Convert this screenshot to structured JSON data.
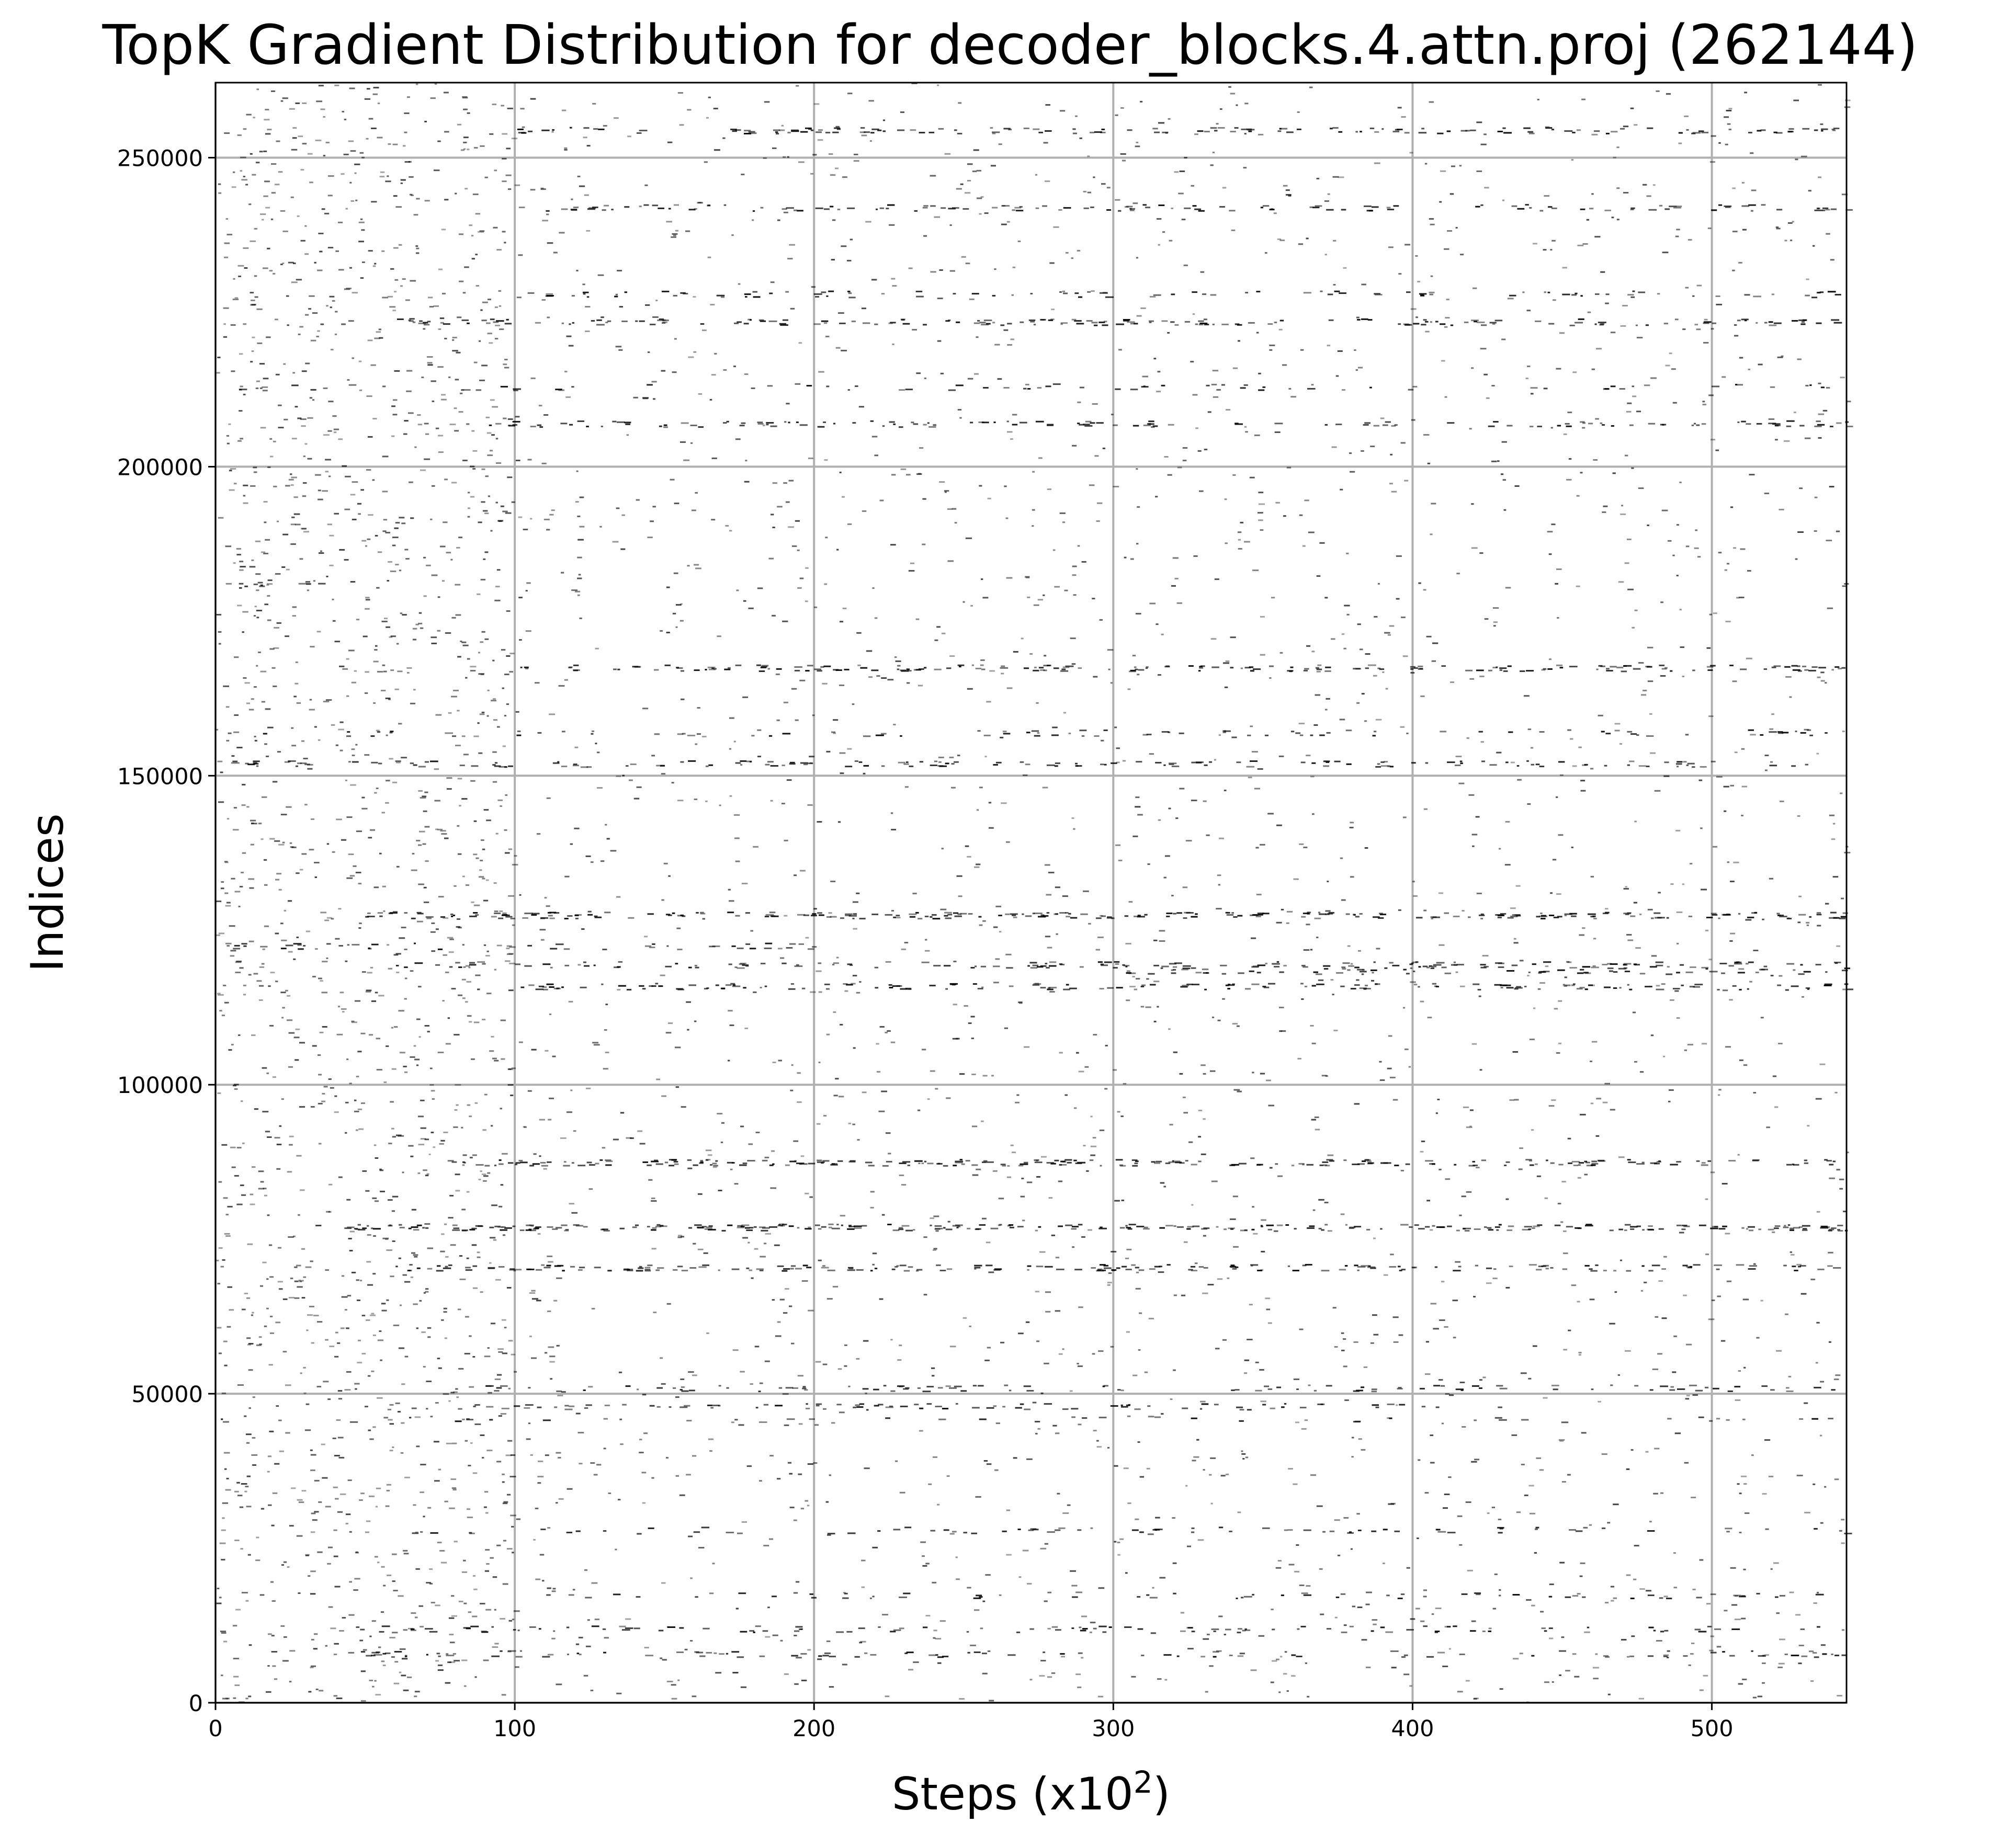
{
  "chart_data": {
    "type": "scatter",
    "title": "TopK Gradient Distribution for decoder_blocks.4.attn.proj (262144)",
    "xlabel": "Steps (x10",
    "xlabel_sup": "2",
    "xlabel_end": ")",
    "ylabel": "Indices",
    "xlim": [
      0,
      545
    ],
    "ylim": [
      0,
      262144
    ],
    "xticks": [
      0,
      100,
      200,
      300,
      400,
      500
    ],
    "xtick_labels": [
      "0",
      "100",
      "200",
      "300",
      "400",
      "500"
    ],
    "yticks": [
      0,
      50000,
      100000,
      150000,
      200000,
      250000
    ],
    "ytick_labels": [
      "0",
      "50000",
      "100000",
      "150000",
      "200000",
      "250000"
    ],
    "grid": true,
    "marker_color": "#000000",
    "dense_bands": [
      {
        "index": 254500,
        "x_start": 100,
        "x_end": 545,
        "density": 0.55
      },
      {
        "index": 242000,
        "x_start": 100,
        "x_end": 545,
        "density": 0.45
      },
      {
        "index": 228000,
        "x_start": 100,
        "x_end": 545,
        "density": 0.35
      },
      {
        "index": 223500,
        "x_start": 60,
        "x_end": 545,
        "density": 0.6
      },
      {
        "index": 213000,
        "x_start": 0,
        "x_end": 545,
        "density": 0.2
      },
      {
        "index": 207000,
        "x_start": 80,
        "x_end": 545,
        "density": 0.45
      },
      {
        "index": 181000,
        "x_start": 5,
        "x_end": 35,
        "density": 0.6
      },
      {
        "index": 167500,
        "x_start": 100,
        "x_end": 545,
        "density": 0.7
      },
      {
        "index": 157000,
        "x_start": 0,
        "x_end": 545,
        "density": 0.25
      },
      {
        "index": 152000,
        "x_start": 0,
        "x_end": 545,
        "density": 0.45
      },
      {
        "index": 127500,
        "x_start": 50,
        "x_end": 545,
        "density": 0.85
      },
      {
        "index": 122500,
        "x_start": 0,
        "x_end": 200,
        "density": 0.35
      },
      {
        "index": 119500,
        "x_start": 60,
        "x_end": 545,
        "density": 0.55
      },
      {
        "index": 118500,
        "x_start": 300,
        "x_end": 545,
        "density": 0.45
      },
      {
        "index": 116000,
        "x_start": 100,
        "x_end": 545,
        "density": 0.6
      },
      {
        "index": 87500,
        "x_start": 70,
        "x_end": 545,
        "density": 0.8
      },
      {
        "index": 77000,
        "x_start": 40,
        "x_end": 545,
        "density": 0.9
      },
      {
        "index": 70500,
        "x_start": 60,
        "x_end": 545,
        "density": 0.7
      },
      {
        "index": 51000,
        "x_start": 80,
        "x_end": 545,
        "density": 0.35
      },
      {
        "index": 48000,
        "x_start": 80,
        "x_end": 400,
        "density": 0.45
      },
      {
        "index": 46000,
        "x_start": 0,
        "x_end": 545,
        "density": 0.15
      },
      {
        "index": 28000,
        "x_start": 60,
        "x_end": 545,
        "density": 0.25
      },
      {
        "index": 17500,
        "x_start": 100,
        "x_end": 545,
        "density": 0.25
      },
      {
        "index": 12000,
        "x_start": 40,
        "x_end": 545,
        "density": 0.35
      },
      {
        "index": 8000,
        "x_start": 40,
        "x_end": 545,
        "density": 0.35
      }
    ],
    "scatter_clusters": [
      {
        "x_range": [
          0,
          100
        ],
        "y_range": [
          0,
          262144
        ],
        "count": 1800
      },
      {
        "x_range": [
          100,
          545
        ],
        "y_range": [
          0,
          262144
        ],
        "count": 2600
      }
    ]
  }
}
